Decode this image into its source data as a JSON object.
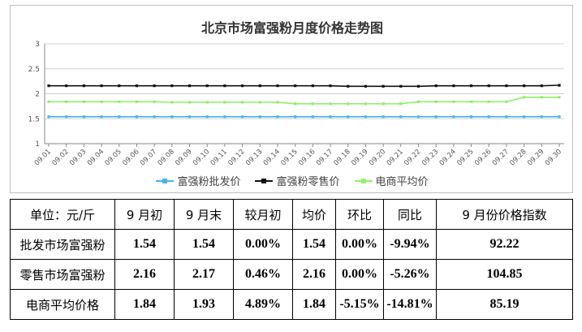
{
  "chart_data": {
    "type": "line",
    "title": "北京市场富强粉月度价格走势图",
    "categories": [
      "09.01",
      "09.02",
      "09.03",
      "09.04",
      "09.05",
      "09.06",
      "09.07",
      "09.08",
      "09.09",
      "09.10",
      "09.11",
      "09.12",
      "09.13",
      "09.14",
      "09.15",
      "09.16",
      "09.17",
      "09.18",
      "09.19",
      "09.20",
      "09.21",
      "09.22",
      "09.23",
      "09.24",
      "09.25",
      "09.26",
      "09.27",
      "09.28",
      "09.29",
      "09.30"
    ],
    "ylim": [
      1,
      3
    ],
    "yticks": [
      "1",
      "1.5",
      "2",
      "2.5",
      "3"
    ],
    "grid": true,
    "legend_position": "bottom",
    "series": [
      {
        "name": "富强粉批发价",
        "color": "#3fb6e8",
        "values": [
          1.54,
          1.54,
          1.54,
          1.54,
          1.54,
          1.54,
          1.54,
          1.54,
          1.54,
          1.54,
          1.54,
          1.54,
          1.54,
          1.54,
          1.54,
          1.54,
          1.54,
          1.54,
          1.54,
          1.54,
          1.54,
          1.54,
          1.54,
          1.54,
          1.54,
          1.54,
          1.54,
          1.54,
          1.54,
          1.54
        ]
      },
      {
        "name": "富强粉零售价",
        "color": "#111111",
        "values": [
          2.16,
          2.16,
          2.16,
          2.16,
          2.16,
          2.16,
          2.16,
          2.16,
          2.16,
          2.16,
          2.16,
          2.16,
          2.16,
          2.16,
          2.16,
          2.16,
          2.16,
          2.15,
          2.15,
          2.15,
          2.15,
          2.15,
          2.16,
          2.16,
          2.16,
          2.16,
          2.16,
          2.16,
          2.16,
          2.17
        ]
      },
      {
        "name": "电商平均价",
        "color": "#8ff06a",
        "values": [
          1.84,
          1.84,
          1.84,
          1.84,
          1.84,
          1.84,
          1.84,
          1.83,
          1.83,
          1.83,
          1.83,
          1.83,
          1.83,
          1.83,
          1.8,
          1.8,
          1.8,
          1.8,
          1.8,
          1.8,
          1.8,
          1.84,
          1.84,
          1.84,
          1.84,
          1.84,
          1.84,
          1.93,
          1.93,
          1.93
        ]
      }
    ]
  },
  "table": {
    "headers": [
      "单位：元/斤",
      "9 月初",
      "9 月末",
      "较月初",
      "均价",
      "环比",
      "同比",
      "9 月份价格指数"
    ],
    "rows": [
      [
        "批发市场富强粉",
        "1.54",
        "1.54",
        "0.00%",
        "1.54",
        "0.00%",
        "-9.94%",
        "92.22"
      ],
      [
        "零售市场富强粉",
        "2.16",
        "2.17",
        "0.46%",
        "2.16",
        "0.00%",
        "-5.26%",
        "104.85"
      ],
      [
        "电商平均价格",
        "1.84",
        "1.93",
        "4.89%",
        "1.84",
        "-5.15%",
        "-14.81%",
        "85.19"
      ]
    ]
  }
}
